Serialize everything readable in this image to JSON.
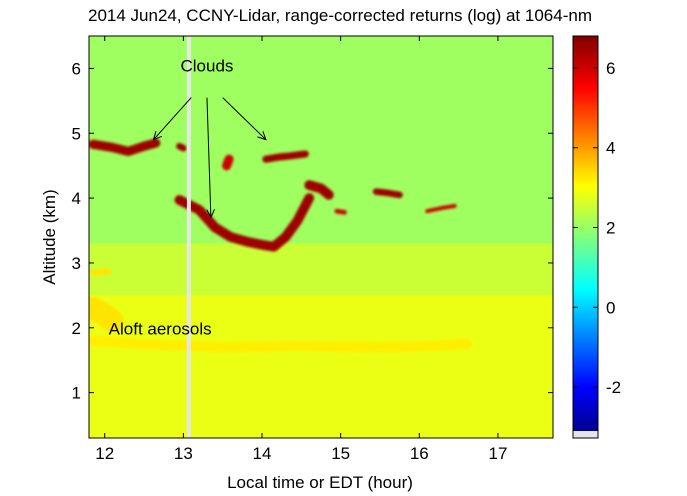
{
  "chart_data": {
    "type": "heatmap",
    "title": "2014 Jun24, CCNY-Lidar, range-corrected returns (log) at 1064-nm",
    "xlabel": "Local time or EDT (hour)",
    "ylabel": "Altitude (km)",
    "xlim": [
      11.8,
      17.7
    ],
    "ylim": [
      0.3,
      6.5
    ],
    "x_ticks": [
      "12",
      "13",
      "14",
      "15",
      "16",
      "17"
    ],
    "y_ticks": [
      "1",
      "2",
      "3",
      "4",
      "5",
      "6"
    ],
    "colorbar": {
      "range": [
        -3.1,
        6.8
      ],
      "ticks": [
        "-2",
        "0",
        "2",
        "4",
        "6"
      ],
      "colormap": "jet"
    },
    "background_value": 2.5,
    "data_gap_time": 13.07,
    "annotations": [
      {
        "text": "Clouds",
        "x": 13.3,
        "y": 5.95
      },
      {
        "text": "Aloft aerosols",
        "x": 12.05,
        "y": 1.9
      }
    ],
    "arrows": [
      {
        "from": [
          13.1,
          5.55
        ],
        "to": [
          12.62,
          4.9
        ]
      },
      {
        "from": [
          13.3,
          5.55
        ],
        "to": [
          13.35,
          3.7
        ]
      },
      {
        "from": [
          13.5,
          5.55
        ],
        "to": [
          14.05,
          4.9
        ]
      }
    ],
    "features": [
      {
        "name": "Clouds",
        "value": 6.5,
        "points": [
          [
            11.85,
            4.83
          ],
          [
            12.1,
            4.78
          ],
          [
            12.3,
            4.72
          ],
          [
            12.5,
            4.8
          ],
          [
            12.65,
            4.85
          ]
        ],
        "width_km": 0.14
      },
      {
        "name": "Clouds",
        "value": 6.5,
        "points": [
          [
            12.95,
            4.8
          ],
          [
            13.0,
            4.77
          ]
        ],
        "width_km": 0.1
      },
      {
        "name": "Clouds",
        "value": 6.5,
        "points": [
          [
            12.95,
            3.97
          ],
          [
            13.2,
            3.82
          ],
          [
            13.4,
            3.55
          ],
          [
            13.6,
            3.4
          ],
          [
            13.8,
            3.33
          ],
          [
            14.0,
            3.28
          ],
          [
            14.15,
            3.25
          ],
          [
            14.3,
            3.4
          ],
          [
            14.45,
            3.65
          ],
          [
            14.6,
            4.0
          ]
        ],
        "width_km": 0.15
      },
      {
        "name": "Clouds",
        "value": 6.5,
        "points": [
          [
            14.05,
            4.6
          ],
          [
            14.2,
            4.63
          ],
          [
            14.35,
            4.65
          ],
          [
            14.55,
            4.68
          ]
        ],
        "width_km": 0.11
      },
      {
        "name": "Clouds",
        "value": 6.5,
        "points": [
          [
            14.6,
            4.2
          ],
          [
            14.75,
            4.15
          ],
          [
            14.85,
            4.05
          ]
        ],
        "width_km": 0.15
      },
      {
        "name": "Clouds",
        "value": 6.5,
        "points": [
          [
            15.45,
            4.1
          ],
          [
            15.6,
            4.08
          ],
          [
            15.75,
            4.05
          ]
        ],
        "width_km": 0.1
      },
      {
        "name": "Clouds",
        "value": 6.0,
        "points": [
          [
            13.55,
            4.5
          ],
          [
            13.58,
            4.6
          ]
        ],
        "width_km": 0.14
      },
      {
        "name": "Clouds",
        "value": 6.0,
        "points": [
          [
            14.95,
            3.8
          ],
          [
            15.05,
            3.78
          ]
        ],
        "width_km": 0.07
      },
      {
        "name": "Clouds",
        "value": 6.0,
        "points": [
          [
            16.1,
            3.8
          ],
          [
            16.3,
            3.85
          ],
          [
            16.45,
            3.88
          ]
        ],
        "width_km": 0.06
      },
      {
        "name": "Aloft aerosols",
        "value": 3.2,
        "points": [
          [
            11.85,
            1.8
          ],
          [
            12.5,
            1.75
          ],
          [
            13.5,
            1.7
          ],
          [
            14.5,
            1.72
          ],
          [
            15.5,
            1.7
          ],
          [
            16.2,
            1.72
          ],
          [
            16.6,
            1.75
          ]
        ],
        "width_km": 0.16
      },
      {
        "name": "Aloft aerosols",
        "value": 3.3,
        "points": [
          [
            11.85,
            2.3
          ],
          [
            12.0,
            2.2
          ],
          [
            12.1,
            2.1
          ]
        ],
        "width_km": 0.35
      },
      {
        "name": "Aloft aerosols",
        "value": 3.3,
        "points": [
          [
            11.85,
            2.85
          ],
          [
            12.05,
            2.87
          ]
        ],
        "width_km": 0.09
      }
    ],
    "layers": [
      {
        "value": 2.0,
        "y_range": [
          3.3,
          6.5
        ]
      },
      {
        "value": 2.5,
        "y_range": [
          2.5,
          3.3
        ]
      },
      {
        "value": 2.9,
        "y_range": [
          0.3,
          2.5
        ]
      }
    ]
  }
}
